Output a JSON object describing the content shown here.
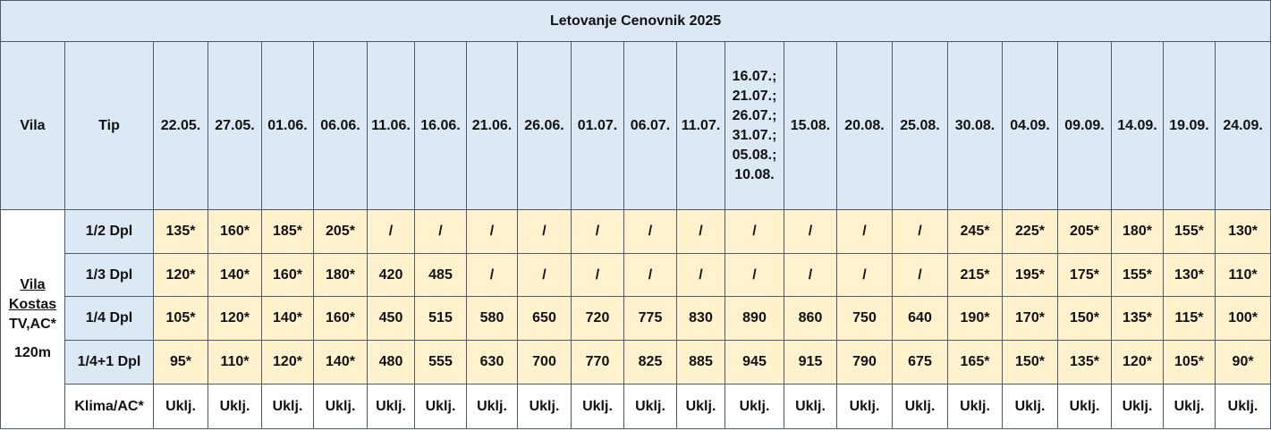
{
  "title": "Letovanje Cenovnik 2025",
  "header": {
    "vila": "Vila",
    "tip": "Tip",
    "dates": [
      "22.05.",
      "27.05.",
      "01.06.",
      "06.06.",
      "11.06.",
      "16.06.",
      "21.06.",
      "26.06.",
      "01.07.",
      "06.07.",
      "11.07.",
      "16.07.; 21.07.; 26.07.; 31.07.; 05.08.; 10.08.",
      "15.08.",
      "20.08.",
      "25.08.",
      "30.08.",
      "04.09.",
      "09.09.",
      "14.09.",
      "19.09.",
      "24.09."
    ]
  },
  "villa": {
    "name": "Vila Kostas",
    "features": "TV,AC*",
    "size": "120m"
  },
  "rows": [
    {
      "type": "1/2 Dpl",
      "prices": [
        "135*",
        "160*",
        "185*",
        "205*",
        "/",
        "/",
        "/",
        "/",
        "/",
        "/",
        "/",
        "/",
        "/",
        "/",
        "/",
        "245*",
        "225*",
        "205*",
        "180*",
        "155*",
        "130*"
      ]
    },
    {
      "type": "1/3 Dpl",
      "prices": [
        "120*",
        "140*",
        "160*",
        "180*",
        "420",
        "485",
        "/",
        "/",
        "/",
        "/",
        "/",
        "/",
        "/",
        "/",
        "/",
        "215*",
        "195*",
        "175*",
        "155*",
        "130*",
        "110*"
      ]
    },
    {
      "type": "1/4 Dpl",
      "prices": [
        "105*",
        "120*",
        "140*",
        "160*",
        "450",
        "515",
        "580",
        "650",
        "720",
        "775",
        "830",
        "890",
        "860",
        "750",
        "640",
        "190*",
        "170*",
        "150*",
        "135*",
        "115*",
        "100*"
      ]
    },
    {
      "type": "1/4+1 Dpl",
      "prices": [
        "95*",
        "110*",
        "120*",
        "140*",
        "480",
        "555",
        "630",
        "700",
        "770",
        "825",
        "885",
        "945",
        "915",
        "790",
        "675",
        "165*",
        "150*",
        "135*",
        "120*",
        "105*",
        "90*"
      ]
    },
    {
      "type": "Klima/AC*",
      "prices": [
        "Uklj.",
        "Uklj.",
        "Uklj.",
        "Uklj.",
        "Uklj.",
        "Uklj.",
        "Uklj.",
        "Uklj.",
        "Uklj.",
        "Uklj.",
        "Uklj.",
        "Uklj.",
        "Uklj.",
        "Uklj.",
        "Uklj.",
        "Uklj.",
        "Uklj.",
        "Uklj.",
        "Uklj.",
        "Uklj.",
        "Uklj."
      ]
    }
  ]
}
